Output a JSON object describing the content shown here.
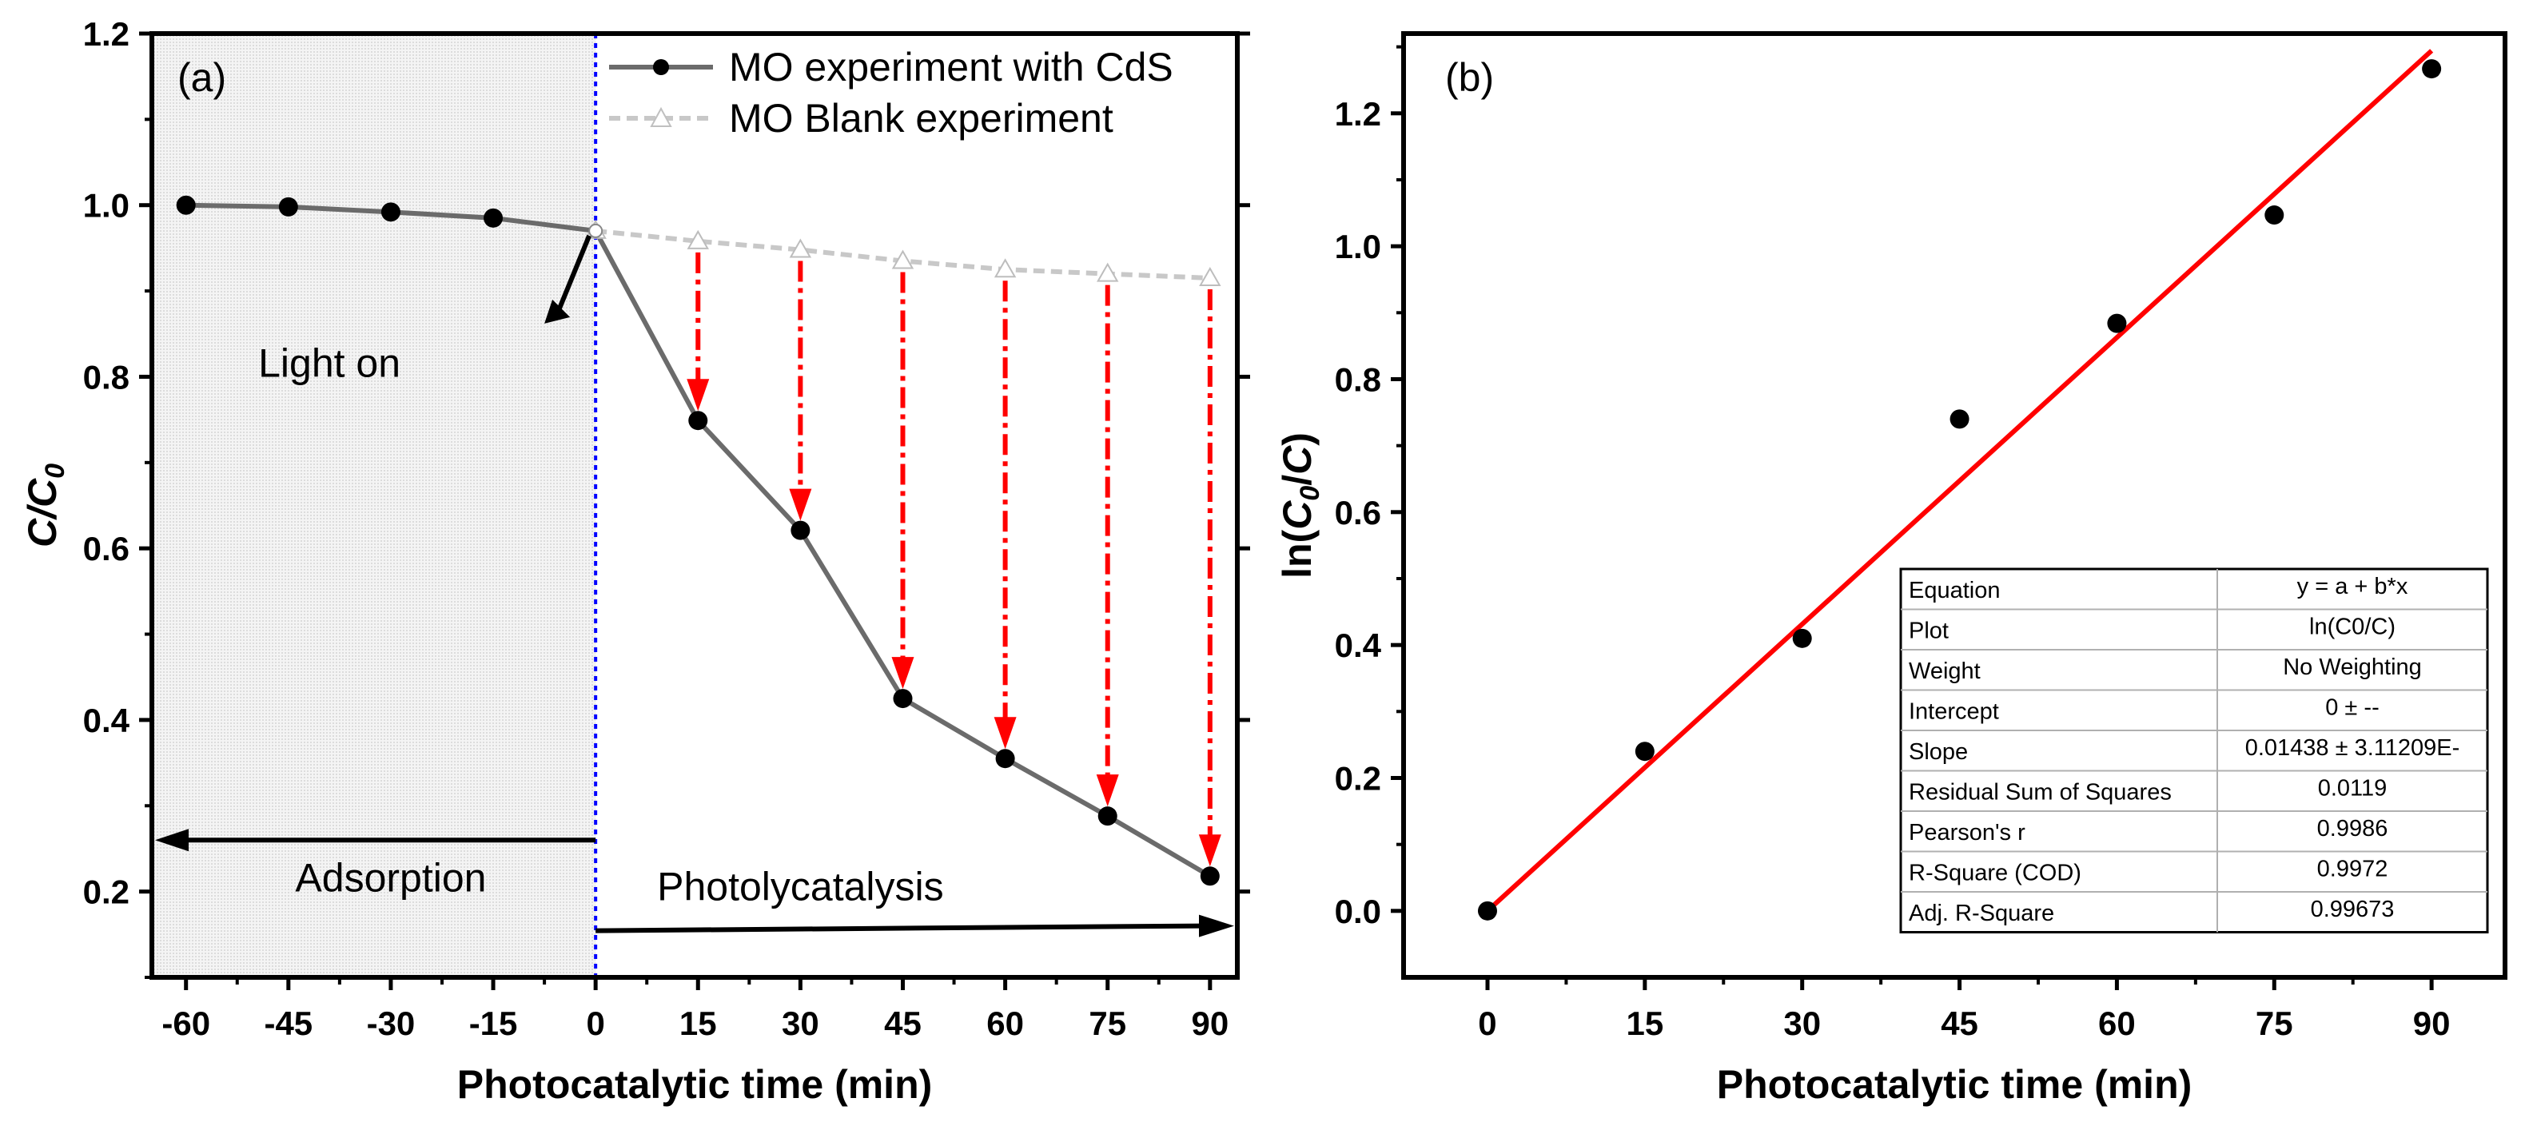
{
  "chart_data": [
    {
      "type": "line",
      "panel_label": "(a)",
      "xlabel": "Photocatalytic time (min)",
      "ylabel": "C/C0",
      "ylabel_parts": [
        "C/C",
        "0"
      ],
      "xlim": [
        -65,
        94
      ],
      "ylim": [
        0.1,
        1.2
      ],
      "x_ticks": [
        -60,
        -45,
        -30,
        -15,
        0,
        15,
        30,
        45,
        60,
        75,
        90
      ],
      "y_ticks": [
        0.2,
        0.4,
        0.6,
        0.8,
        1.0,
        1.2
      ],
      "legend_position": "top-right",
      "series": [
        {
          "name": "MO experiment with CdS",
          "color": "#6b6b6b",
          "marker": "filled-circle",
          "x": [
            -60,
            -45,
            -30,
            -15,
            0,
            15,
            30,
            45,
            60,
            75,
            90
          ],
          "y": [
            1.0,
            0.998,
            0.992,
            0.985,
            0.97,
            0.749,
            0.621,
            0.425,
            0.355,
            0.288,
            0.218
          ]
        },
        {
          "name": "MO Blank experiment",
          "color": "#c8c8c8",
          "marker": "open-triangle",
          "x": [
            0,
            15,
            30,
            45,
            60,
            75,
            90
          ],
          "y": [
            0.97,
            0.958,
            0.948,
            0.935,
            0.925,
            0.92,
            0.915
          ]
        }
      ],
      "annotations": {
        "light_on": "Light on",
        "adsorption": "Adsorption",
        "photocatalysis": "Photolycatalysis"
      },
      "colors": {
        "arrow_red": "#ff0000",
        "divider_blue": "#0000ff",
        "shade": "#ebebeb"
      }
    },
    {
      "type": "scatter",
      "panel_label": "(b)",
      "xlabel": "Photocatalytic time (min)",
      "ylabel": "ln(C0/C)",
      "ylabel_parts": [
        "ln(",
        "C",
        "0",
        "/",
        "C",
        ")"
      ],
      "xlim": [
        -8,
        97
      ],
      "ylim": [
        -0.1,
        1.32
      ],
      "x_ticks": [
        0,
        15,
        30,
        45,
        60,
        75,
        90
      ],
      "y_ticks": [
        0.0,
        0.2,
        0.4,
        0.6,
        0.8,
        1.0,
        1.2
      ],
      "series": [
        {
          "name": "ln(C0/C)",
          "color": "#000000",
          "x": [
            0,
            15,
            30,
            45,
            60,
            75,
            90
          ],
          "y": [
            0.0,
            0.24,
            0.41,
            0.74,
            0.884,
            1.047,
            1.267
          ]
        }
      ],
      "fit": {
        "color": "#ff0000",
        "intercept": 0,
        "slope": 0.01438
      },
      "fit_table": [
        [
          "Equation",
          "y = a + b*x"
        ],
        [
          "Plot",
          "ln(C0/C)"
        ],
        [
          "Weight",
          "No Weighting"
        ],
        [
          "Intercept",
          "0 ± --"
        ],
        [
          "Slope",
          "0.01438 ± 3.11209E-"
        ],
        [
          "Residual Sum of Squares",
          "0.0119"
        ],
        [
          "Pearson's r",
          "0.9986"
        ],
        [
          "R-Square (COD)",
          "0.9972"
        ],
        [
          "Adj. R-Square",
          "0.99673"
        ]
      ]
    }
  ]
}
